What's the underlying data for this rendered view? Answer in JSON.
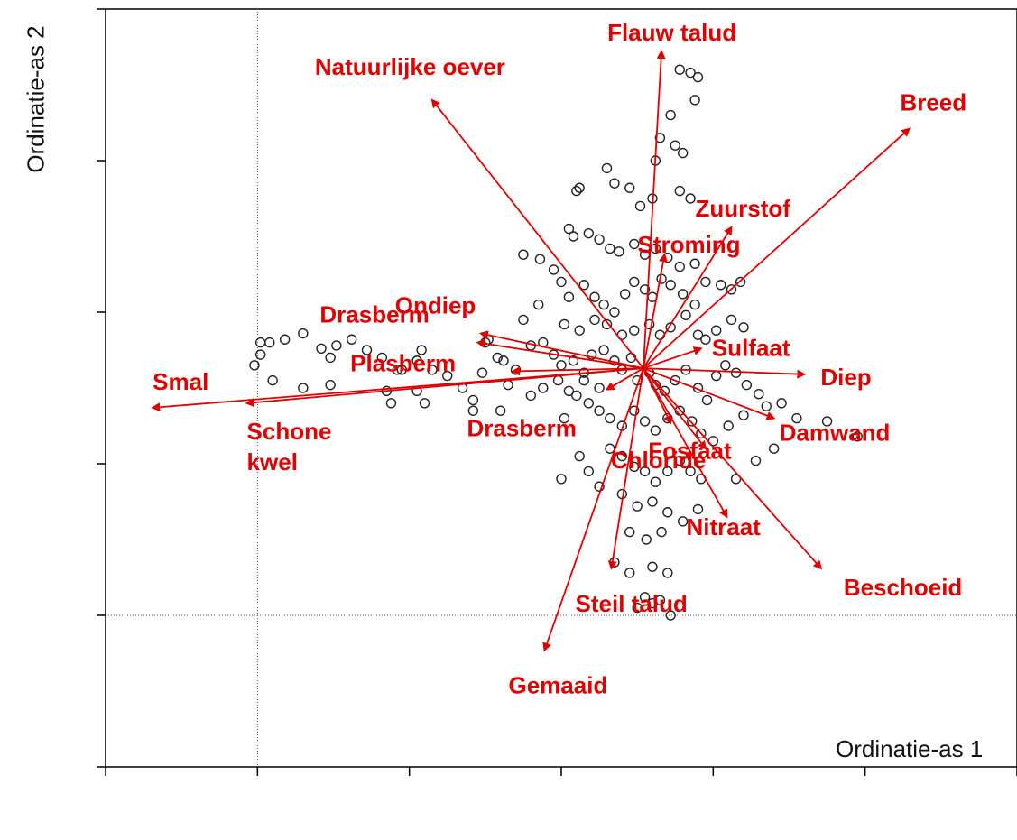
{
  "chart_data": {
    "type": "scatter",
    "subtype": "ordination-biplot",
    "title": "",
    "xlabel": "Ordinatie-as 1",
    "ylabel": "Ordinatie-as 2",
    "xlim": [
      -1,
      4.0
    ],
    "ylim": [
      -1.0,
      4.0
    ],
    "grid": false,
    "reference_lines": {
      "x": 0,
      "y": 0
    },
    "colors": {
      "vectors": "#e00000",
      "points": "#222222",
      "axes": "#000000"
    },
    "vector_origin": [
      2.54,
      1.63
    ],
    "vectors": [
      {
        "label": "Flauw talud",
        "x": 2.66,
        "y": 3.72
      },
      {
        "label": "Natuurlijke oever",
        "x": 1.15,
        "y": 3.4
      },
      {
        "label": "Breed",
        "x": 4.29,
        "y": 3.21
      },
      {
        "label": "Zuurstof",
        "x": 3.12,
        "y": 2.56
      },
      {
        "label": "Stroming",
        "x": 2.68,
        "y": 2.38
      },
      {
        "label": "Ondiep",
        "x": 1.47,
        "y": 1.86
      },
      {
        "label": "Drasberm",
        "x": 1.45,
        "y": 1.8
      },
      {
        "label": "Plasberm",
        "x": 1.68,
        "y": 1.61
      },
      {
        "label": "Smal",
        "x": -0.69,
        "y": 1.37
      },
      {
        "label": "Schone kwel",
        "x": -0.07,
        "y": 1.4
      },
      {
        "label": "Drasberm",
        "x": 2.3,
        "y": 1.49
      },
      {
        "label": "Sulfaat",
        "x": 2.92,
        "y": 1.76
      },
      {
        "label": "Diep",
        "x": 3.6,
        "y": 1.59
      },
      {
        "label": "Damwand",
        "x": 3.4,
        "y": 1.3
      },
      {
        "label": "Fosfaat",
        "x": 2.72,
        "y": 1.27
      },
      {
        "label": "Chloride",
        "x": 2.95,
        "y": 1.1
      },
      {
        "label": "Nitraat",
        "x": 3.09,
        "y": 0.65
      },
      {
        "label": "Beschoeid",
        "x": 3.71,
        "y": 0.31
      },
      {
        "label": "Steil talud",
        "x": 2.33,
        "y": 0.31
      },
      {
        "label": "Gemaaid",
        "x": 1.89,
        "y": -0.23
      }
    ],
    "points": [
      [
        2.78,
        3.6
      ],
      [
        2.85,
        3.58
      ],
      [
        2.9,
        3.55
      ],
      [
        2.88,
        3.4
      ],
      [
        2.72,
        3.3
      ],
      [
        2.65,
        3.15
      ],
      [
        2.75,
        3.1
      ],
      [
        2.8,
        3.05
      ],
      [
        2.62,
        3.0
      ],
      [
        2.3,
        2.95
      ],
      [
        2.35,
        2.85
      ],
      [
        2.45,
        2.82
      ],
      [
        2.1,
        2.8
      ],
      [
        2.12,
        2.82
      ],
      [
        2.52,
        2.7
      ],
      [
        2.6,
        2.75
      ],
      [
        2.78,
        2.8
      ],
      [
        2.85,
        2.75
      ],
      [
        2.05,
        2.55
      ],
      [
        2.08,
        2.5
      ],
      [
        2.18,
        2.52
      ],
      [
        2.25,
        2.48
      ],
      [
        2.32,
        2.42
      ],
      [
        2.38,
        2.4
      ],
      [
        2.48,
        2.45
      ],
      [
        2.55,
        2.38
      ],
      [
        2.62,
        2.42
      ],
      [
        2.7,
        2.36
      ],
      [
        2.78,
        2.3
      ],
      [
        2.88,
        2.32
      ],
      [
        1.75,
        2.38
      ],
      [
        1.86,
        2.35
      ],
      [
        1.95,
        2.28
      ],
      [
        2.0,
        2.2
      ],
      [
        2.05,
        2.1
      ],
      [
        2.15,
        2.18
      ],
      [
        2.22,
        2.1
      ],
      [
        2.28,
        2.05
      ],
      [
        2.35,
        2.0
      ],
      [
        2.42,
        2.12
      ],
      [
        2.48,
        2.2
      ],
      [
        2.55,
        2.15
      ],
      [
        2.6,
        2.1
      ],
      [
        2.66,
        2.22
      ],
      [
        2.72,
        2.18
      ],
      [
        2.8,
        2.12
      ],
      [
        2.88,
        2.05
      ],
      [
        2.95,
        2.2
      ],
      [
        3.05,
        2.18
      ],
      [
        3.12,
        2.15
      ],
      [
        3.18,
        2.2
      ],
      [
        1.8,
        1.78
      ],
      [
        1.88,
        1.8
      ],
      [
        1.95,
        1.72
      ],
      [
        2.0,
        1.65
      ],
      [
        2.08,
        1.68
      ],
      [
        2.15,
        1.6
      ],
      [
        2.2,
        1.72
      ],
      [
        2.28,
        1.75
      ],
      [
        2.35,
        1.68
      ],
      [
        2.4,
        1.62
      ],
      [
        2.46,
        1.7
      ],
      [
        2.5,
        1.55
      ],
      [
        2.58,
        1.6
      ],
      [
        2.62,
        1.52
      ],
      [
        2.68,
        1.48
      ],
      [
        2.75,
        1.55
      ],
      [
        2.82,
        1.62
      ],
      [
        2.9,
        1.5
      ],
      [
        2.96,
        1.42
      ],
      [
        3.02,
        1.58
      ],
      [
        3.08,
        1.65
      ],
      [
        3.15,
        1.6
      ],
      [
        3.22,
        1.52
      ],
      [
        3.3,
        1.46
      ],
      [
        2.1,
        1.45
      ],
      [
        2.18,
        1.4
      ],
      [
        2.25,
        1.35
      ],
      [
        2.32,
        1.3
      ],
      [
        2.4,
        1.25
      ],
      [
        2.48,
        1.35
      ],
      [
        2.55,
        1.28
      ],
      [
        2.62,
        1.22
      ],
      [
        2.7,
        1.3
      ],
      [
        2.78,
        1.35
      ],
      [
        2.86,
        1.28
      ],
      [
        2.92,
        1.2
      ],
      [
        3.0,
        1.15
      ],
      [
        3.1,
        1.25
      ],
      [
        3.2,
        1.32
      ],
      [
        3.35,
        1.38
      ],
      [
        3.45,
        1.4
      ],
      [
        3.55,
        1.3
      ],
      [
        3.75,
        1.28
      ],
      [
        3.95,
        1.18
      ],
      [
        2.32,
        1.1
      ],
      [
        2.4,
        1.05
      ],
      [
        2.48,
        0.98
      ],
      [
        2.55,
        0.95
      ],
      [
        2.62,
        0.88
      ],
      [
        2.7,
        0.95
      ],
      [
        2.78,
        1.02
      ],
      [
        2.85,
        0.95
      ],
      [
        2.92,
        0.9
      ],
      [
        2.4,
        0.8
      ],
      [
        2.5,
        0.72
      ],
      [
        2.6,
        0.75
      ],
      [
        2.7,
        0.68
      ],
      [
        2.8,
        0.62
      ],
      [
        2.9,
        0.7
      ],
      [
        2.45,
        0.55
      ],
      [
        2.56,
        0.5
      ],
      [
        2.66,
        0.55
      ],
      [
        2.35,
        0.35
      ],
      [
        2.45,
        0.28
      ],
      [
        2.6,
        0.32
      ],
      [
        2.7,
        0.28
      ],
      [
        2.5,
        0.05
      ],
      [
        2.6,
        0.08
      ],
      [
        2.72,
        0.0
      ],
      [
        2.65,
        0.1
      ],
      [
        2.55,
        0.12
      ],
      [
        2.15,
        1.55
      ],
      [
        2.25,
        1.5
      ],
      [
        2.05,
        1.48
      ],
      [
        1.98,
        1.55
      ],
      [
        1.88,
        1.5
      ],
      [
        1.8,
        1.45
      ],
      [
        1.65,
        1.52
      ],
      [
        1.7,
        1.62
      ],
      [
        1.58,
        1.7
      ],
      [
        1.48,
        1.6
      ],
      [
        1.42,
        1.42
      ],
      [
        1.35,
        1.5
      ],
      [
        1.25,
        1.58
      ],
      [
        1.15,
        1.62
      ],
      [
        1.05,
        1.68
      ],
      [
        0.95,
        1.62
      ],
      [
        0.82,
        1.7
      ],
      [
        0.72,
        1.75
      ],
      [
        0.62,
        1.82
      ],
      [
        0.52,
        1.78
      ],
      [
        0.42,
        1.76
      ],
      [
        0.3,
        1.86
      ],
      [
        0.18,
        1.82
      ],
      [
        0.08,
        1.8
      ],
      [
        0.02,
        1.8
      ],
      [
        -0.02,
        1.65
      ],
      [
        0.3,
        1.5
      ],
      [
        0.48,
        1.52
      ],
      [
        0.88,
        1.4
      ],
      [
        1.05,
        1.48
      ],
      [
        1.42,
        1.35
      ],
      [
        0.92,
        1.62
      ],
      [
        1.62,
        1.68
      ],
      [
        1.08,
        1.75
      ],
      [
        1.75,
        1.95
      ],
      [
        1.85,
        2.05
      ],
      [
        1.5,
        1.8
      ],
      [
        1.52,
        1.82
      ],
      [
        2.0,
        0.9
      ],
      [
        2.12,
        1.05
      ],
      [
        2.18,
        0.95
      ],
      [
        2.25,
        0.85
      ],
      [
        2.02,
        1.3
      ],
      [
        3.15,
        0.9
      ],
      [
        3.28,
        1.02
      ],
      [
        3.4,
        1.1
      ],
      [
        2.95,
        1.82
      ],
      [
        3.02,
        1.88
      ],
      [
        3.12,
        1.95
      ],
      [
        3.2,
        1.9
      ],
      [
        2.22,
        1.95
      ],
      [
        2.3,
        1.92
      ],
      [
        2.4,
        1.85
      ],
      [
        2.48,
        1.88
      ],
      [
        2.58,
        1.92
      ],
      [
        2.65,
        1.85
      ],
      [
        2.72,
        1.9
      ],
      [
        2.82,
        1.98
      ],
      [
        2.9,
        1.85
      ],
      [
        2.12,
        1.88
      ],
      [
        2.02,
        1.92
      ],
      [
        0.02,
        1.72
      ],
      [
        1.1,
        1.4
      ],
      [
        1.6,
        1.35
      ],
      [
        0.85,
        1.48
      ],
      [
        0.48,
        1.7
      ],
      [
        0.1,
        1.55
      ]
    ]
  },
  "axes": {
    "x_ticks": [
      -1,
      0,
      1,
      2,
      3,
      4,
      5
    ],
    "y_ticks": [
      -1,
      0,
      1,
      2,
      3,
      4
    ]
  }
}
